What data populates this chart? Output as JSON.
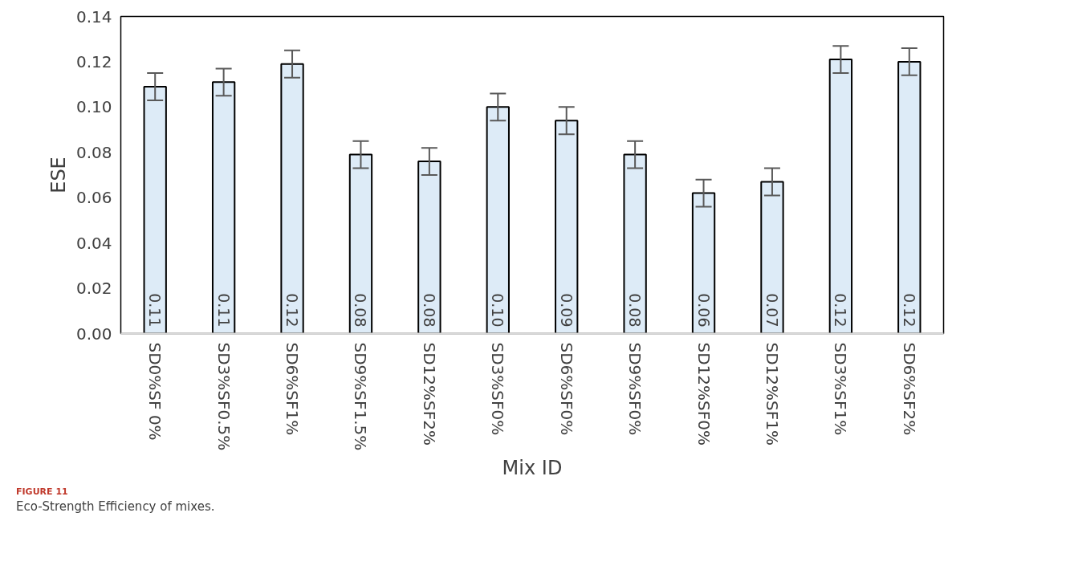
{
  "chart_data": {
    "type": "bar",
    "xlabel": "Mix ID",
    "ylabel": "ESE",
    "categories": [
      "SD0%SF 0%",
      "SD3%SF0.5%",
      "SD6%SF1%",
      "SD9%SF1.5%",
      "SD12%SF2%",
      "SD3%SF0%",
      "SD6%SF0%",
      "SD9%SF0%",
      "SD12%SF0%",
      "SD12%SF1%",
      "SD3%SF1%",
      "SD6%SF2%"
    ],
    "values": [
      0.109,
      0.111,
      0.119,
      0.079,
      0.076,
      0.1,
      0.094,
      0.079,
      0.062,
      0.067,
      0.121,
      0.12
    ],
    "value_labels": [
      "0.11",
      "0.11",
      "0.12",
      "0.08",
      "0.08",
      "0.10",
      "0.09",
      "0.08",
      "0.06",
      "0.07",
      "0.12",
      "0.12"
    ],
    "errors": [
      0.006,
      0.006,
      0.006,
      0.006,
      0.006,
      0.006,
      0.006,
      0.006,
      0.006,
      0.006,
      0.006,
      0.006
    ],
    "color": "#ddebf7",
    "ylim": [
      0,
      0.14
    ],
    "yticks": [
      {
        "value": 0,
        "label": "0.00"
      },
      0.02,
      0.04,
      0.06,
      0.08,
      {
        "value": 0.1,
        "label": "0.10"
      },
      0.12,
      0.14
    ],
    "grid": false,
    "annotations": [
      "FIGURE 11",
      "Eco-Strength Efficiency of mixes."
    ]
  }
}
